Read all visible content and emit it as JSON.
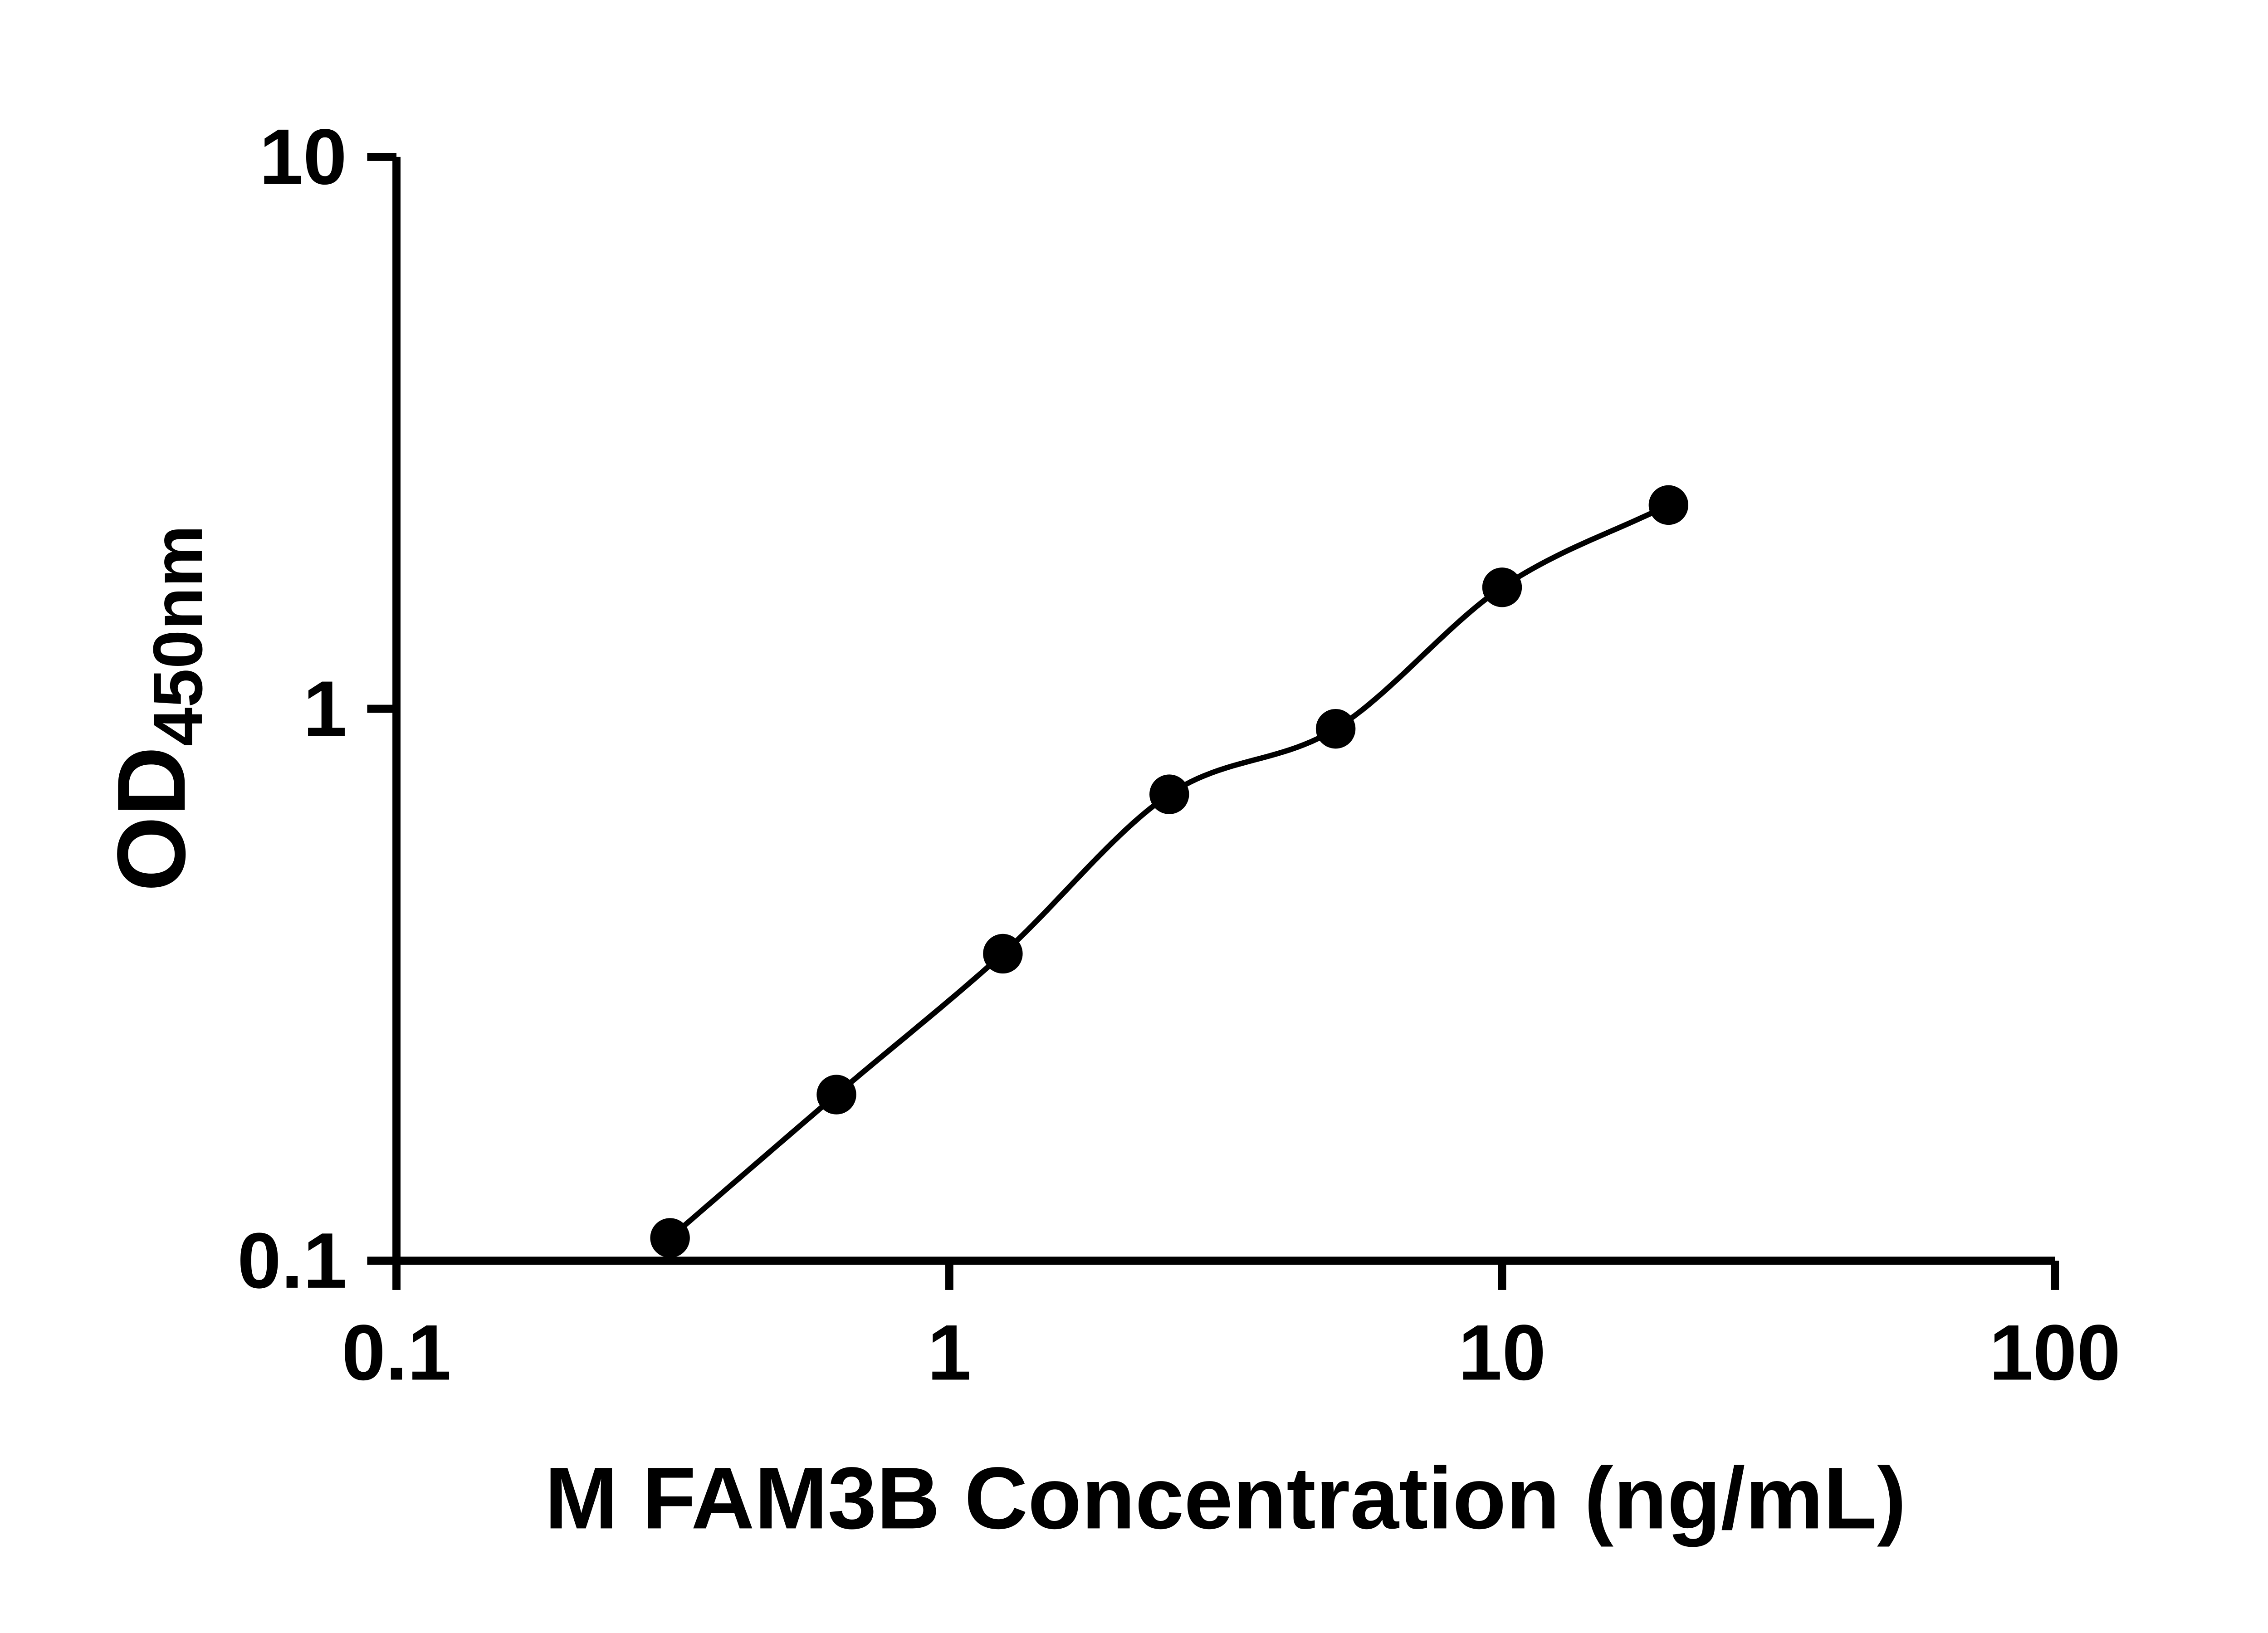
{
  "chart_data": {
    "type": "scatter",
    "title": "",
    "xlabel": "M FAM3B Concentration (ng/mL)",
    "ylabel": "OD",
    "ylabel_sub": "450nm",
    "x_scale": "log",
    "y_scale": "log",
    "xlim": [
      0.1,
      100
    ],
    "ylim": [
      0.1,
      10
    ],
    "grid": false,
    "legend": false,
    "x_ticks": [
      {
        "value": 0.1,
        "label": "0.1"
      },
      {
        "value": 1,
        "label": "1"
      },
      {
        "value": 10,
        "label": "10"
      },
      {
        "value": 100,
        "label": "100"
      }
    ],
    "y_ticks": [
      {
        "value": 0.1,
        "label": "0.1"
      },
      {
        "value": 1,
        "label": "1"
      },
      {
        "value": 10,
        "label": "10"
      }
    ],
    "series": [
      {
        "name": "standard-curve",
        "marker": "filled-circle",
        "color": "#000000",
        "fit": "smooth-curve-through-points",
        "points": [
          {
            "x": 0.3125,
            "y": 0.11
          },
          {
            "x": 0.625,
            "y": 0.2
          },
          {
            "x": 1.25,
            "y": 0.36
          },
          {
            "x": 2.5,
            "y": 0.7
          },
          {
            "x": 5,
            "y": 0.92
          },
          {
            "x": 10,
            "y": 1.66
          },
          {
            "x": 20,
            "y": 2.34
          }
        ]
      }
    ]
  },
  "colors": {
    "background": "#ffffff",
    "axis": "#000000",
    "curve": "#000000",
    "marker": "#000000",
    "text": "#000000"
  }
}
